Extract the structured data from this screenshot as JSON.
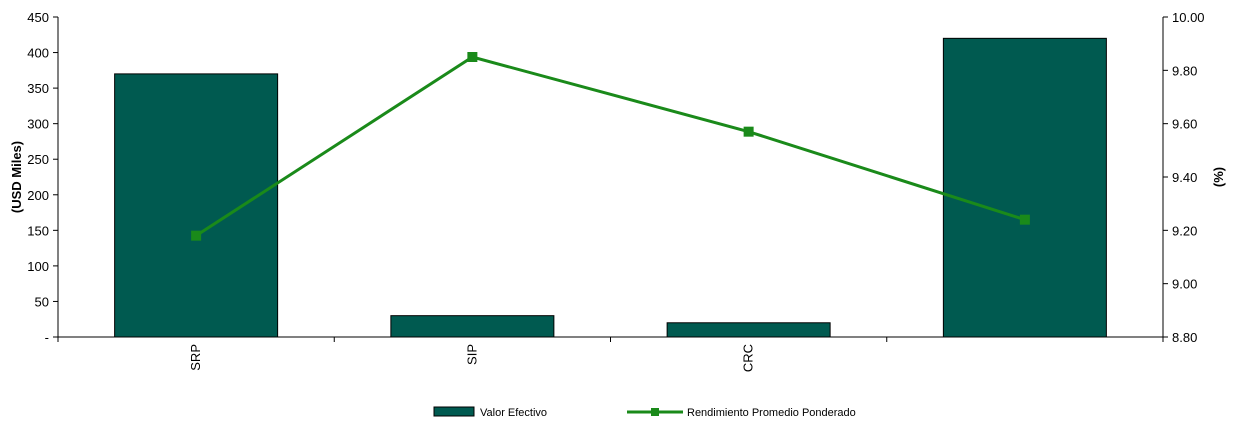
{
  "chart_data": {
    "type": "bar",
    "categories": [
      "SRP",
      "SIP",
      "CRC",
      ""
    ],
    "series": [
      {
        "name": "Valor Efectivo",
        "type": "bar",
        "axis": "left",
        "values": [
          370,
          30,
          20,
          420
        ]
      },
      {
        "name": "Rendimiento Promedio Ponderado",
        "type": "line",
        "axis": "right",
        "values": [
          9.18,
          9.85,
          9.57,
          9.24
        ]
      }
    ],
    "ylabel_left": "(USD Miles)",
    "ylabel_right": "(%)",
    "ylim_left": [
      0,
      450
    ],
    "ylim_right": [
      8.8,
      10.0
    ],
    "yticks_left": [
      0,
      50,
      100,
      150,
      200,
      250,
      300,
      350,
      400,
      450
    ],
    "yticks_left_labels": [
      "-",
      "50",
      "100",
      "150",
      "200",
      "250",
      "300",
      "350",
      "400",
      "450"
    ],
    "yticks_right": [
      8.8,
      9.0,
      9.2,
      9.4,
      9.6,
      9.8,
      10.0
    ],
    "yticks_right_labels": [
      "8.80",
      "9.00",
      "9.20",
      "9.40",
      "9.60",
      "9.80",
      "10.00"
    ],
    "grid": false,
    "legend_position": "bottom-center",
    "colors": {
      "bar_fill": "#005a50",
      "bar_stroke": "#000000",
      "line": "#1a8a1a",
      "marker": "#1a8a1a",
      "axis": "#000000"
    }
  }
}
